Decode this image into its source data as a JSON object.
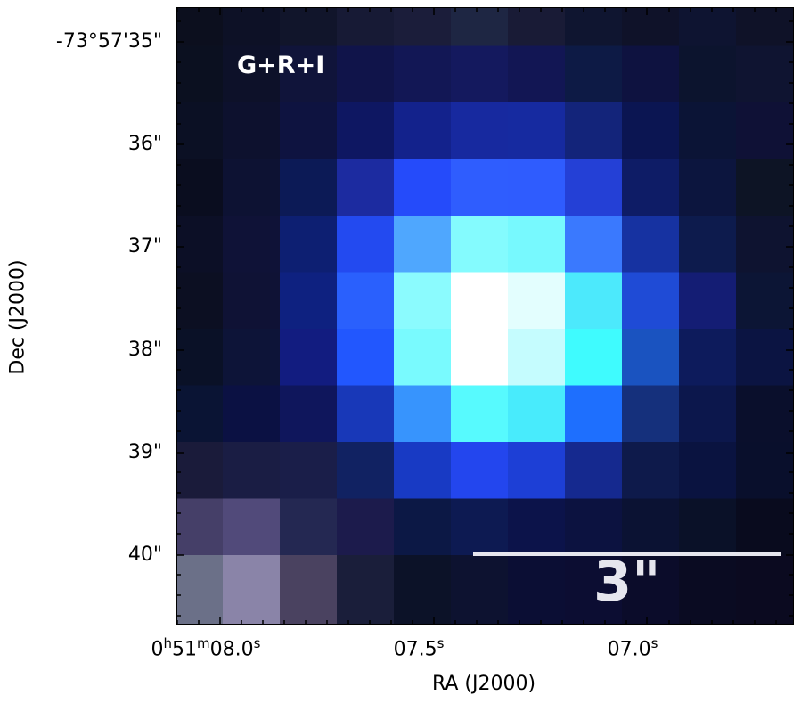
{
  "panel_label": "G+R+I",
  "scale_bar_label": "3\"",
  "axes": {
    "xlabel": "RA (J2000)",
    "ylabel": "Dec (J2000)",
    "dec_ticks": [
      "-73°57'35\"",
      "36\"",
      "37\"",
      "38\"",
      "39\"",
      "40\""
    ],
    "ra_ticks": [
      "0h51m08.0s",
      "07.5s",
      "07.0s"
    ]
  },
  "image": {
    "grid_rows": 11,
    "grid_cols": 11,
    "pixels": [
      [
        "#0c0f1e",
        "#0d1126",
        "#11152b",
        "#171a35",
        "#1b1d3a",
        "#1e2643",
        "#191b36",
        "#0f1530",
        "#0f1229",
        "#0e1431",
        "#0f1228"
      ],
      [
        "#0b1020",
        "#0d1129",
        "#10143a",
        "#10144a",
        "#121755",
        "#14195e",
        "#121654",
        "#0d1a45",
        "#0e1240",
        "#0c142e",
        "#0f1431"
      ],
      [
        "#0b1024",
        "#0d112e",
        "#0e1340",
        "#0e1762",
        "#13228c",
        "#17299f",
        "#162aa0",
        "#13247a",
        "#0b1552",
        "#0b1436",
        "#0f1136"
      ],
      [
        "#0a0d1f",
        "#0d1233",
        "#0c1a56",
        "#1c2ba0",
        "#254bfa",
        "#2f5dfe",
        "#2f5cfe",
        "#2440d6",
        "#0e1c66",
        "#0c153e",
        "#0d1425"
      ],
      [
        "#0c0f26",
        "#0f1237",
        "#0d1f72",
        "#234af0",
        "#4fa7fe",
        "#84fbfe",
        "#77f9fe",
        "#3a79fe",
        "#1632a1",
        "#0d1b4d",
        "#0e1330"
      ],
      [
        "#0c0f22",
        "#0f1235",
        "#0e2180",
        "#2a60fd",
        "#8bfbfe",
        "#ffffff",
        "#e3fefe",
        "#4ce9fc",
        "#1f4bd6",
        "#141d74",
        "#0c1535"
      ],
      [
        "#0a1127",
        "#0d1438",
        "#121c80",
        "#2257fe",
        "#79fafe",
        "#ffffff",
        "#c5fcfe",
        "#3ffbfe",
        "#1a53c0",
        "#0d1b5c",
        "#0b1442"
      ],
      [
        "#0a1434",
        "#0b1143",
        "#0f165c",
        "#1838b8",
        "#3794fd",
        "#57fafe",
        "#48ebfc",
        "#1e6ffe",
        "#15307c",
        "#0c174c",
        "#0a0f2c"
      ],
      [
        "#1a1b3a",
        "#1a1d44",
        "#1a1e49",
        "#112262",
        "#183ac4",
        "#2346ee",
        "#1d3fd6",
        "#15298f",
        "#0e1a4b",
        "#0a1340",
        "#090f2c"
      ],
      [
        "#453f68",
        "#514a7a",
        "#242852",
        "#1c1b4c",
        "#0c1845",
        "#0d1a52",
        "#0c134a",
        "#0c1240",
        "#0b1233",
        "#0a1128",
        "#090b1e"
      ],
      [
        "#6b7088",
        "#8a84a8",
        "#4a4260",
        "#1a1e3a",
        "#0c1228",
        "#0d1230",
        "#0b0e34",
        "#0c0d32",
        "#0b0c2a",
        "#0a0b22",
        "#0b0a20"
      ]
    ]
  }
}
